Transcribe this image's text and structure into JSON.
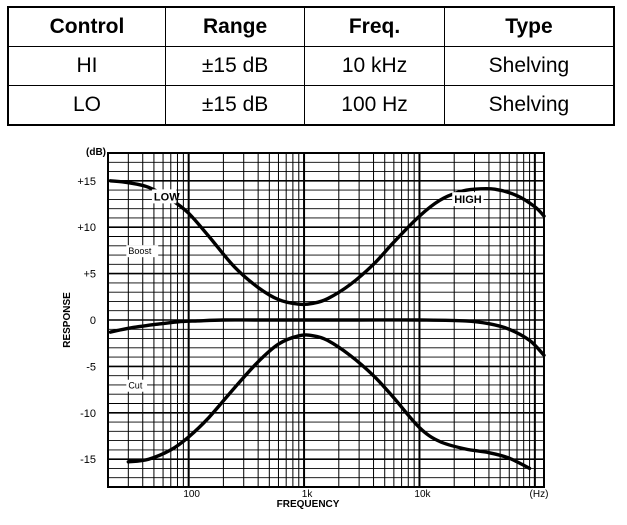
{
  "table": {
    "headers": [
      "Control",
      "Range",
      "Freq.",
      "Type"
    ],
    "rows": [
      [
        "HI",
        "±15 dB",
        "10 kHz",
        "Shelving"
      ],
      [
        "LO",
        "±15 dB",
        "100 Hz",
        "Shelving"
      ]
    ]
  },
  "chart_data": {
    "type": "line",
    "title": "",
    "xlabel": "FREQUENCY",
    "ylabel": "RESPONSE",
    "x_unit_label": "(Hz)",
    "y_unit_label": "(dB)",
    "x_scale": "log",
    "xlim": [
      20,
      120000
    ],
    "ylim": [
      -18,
      18
    ],
    "x_ticks": [
      {
        "value": 100,
        "label": "100"
      },
      {
        "value": 1000,
        "label": "1k"
      },
      {
        "value": 10000,
        "label": "10k"
      }
    ],
    "y_ticks": [
      {
        "value": 15,
        "label": "+15"
      },
      {
        "value": 10,
        "label": "+10"
      },
      {
        "value": 5,
        "label": "+5"
      },
      {
        "value": 0,
        "label": "0"
      },
      {
        "value": -5,
        "label": "-5"
      },
      {
        "value": -10,
        "label": "-10"
      },
      {
        "value": -15,
        "label": "-15"
      }
    ],
    "grid": true,
    "annotations": [
      {
        "text": "LOW",
        "x": 50,
        "y": 13
      },
      {
        "text": "HIGH",
        "x": 20000,
        "y": 12.7
      },
      {
        "text": "Boost",
        "x": 30,
        "y": 7.2
      },
      {
        "text": "Cut",
        "x": 30,
        "y": -7.3
      }
    ],
    "series": [
      {
        "name": "boost",
        "x": [
          21,
          30,
          45,
          70,
          100,
          150,
          250,
          400,
          600,
          900,
          1200,
          1600,
          2500,
          4000,
          6000,
          10000,
          15000,
          22000,
          30000,
          45000,
          70000,
          100000,
          120000
        ],
        "y": [
          15,
          14.8,
          14.3,
          13,
          11.5,
          9,
          5.7,
          3.5,
          2.2,
          1.7,
          1.8,
          2.3,
          3.8,
          6,
          8.4,
          11.2,
          12.9,
          13.8,
          14.1,
          14.1,
          13.4,
          12.2,
          11.2
        ]
      },
      {
        "name": "flat",
        "x": [
          21,
          30,
          50,
          80,
          120,
          200,
          400,
          1000,
          3000,
          10000,
          25000,
          40000,
          60000,
          90000,
          120000
        ],
        "y": [
          -1.3,
          -0.9,
          -0.5,
          -0.2,
          -0.1,
          0,
          0,
          0,
          0,
          0,
          -0.1,
          -0.4,
          -1,
          -2.2,
          -3.8
        ]
      },
      {
        "name": "cut",
        "x": [
          30,
          45,
          70,
          100,
          150,
          250,
          400,
          600,
          900,
          1200,
          1600,
          2500,
          4000,
          6000,
          10000,
          15000,
          25000,
          40000,
          60000,
          90000
        ],
        "y": [
          -15.3,
          -15,
          -14,
          -12.6,
          -10.5,
          -7.3,
          -4.5,
          -2.6,
          -1.7,
          -1.7,
          -2.2,
          -3.8,
          -6,
          -8.4,
          -11.6,
          -13.1,
          -13.9,
          -14.3,
          -14.9,
          -16
        ]
      }
    ]
  }
}
